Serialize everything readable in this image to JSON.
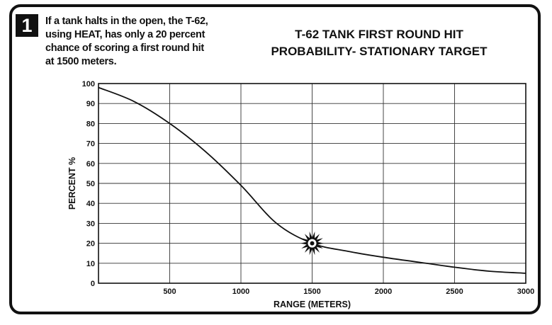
{
  "badge": {
    "number": "1"
  },
  "caption": {
    "lines": [
      "If a tank halts in the open, the T-62,",
      "using HEAT, has only a 20 percent",
      "chance of scoring a first round hit",
      "at 1500 meters."
    ]
  },
  "chart_data": {
    "type": "line",
    "title_lines": [
      "T-62 TANK FIRST ROUND HIT",
      "PROBABILITY- STATIONARY TARGET"
    ],
    "xlabel": "RANGE (METERS)",
    "ylabel": "PERCENT %",
    "xlim": [
      0,
      3000
    ],
    "ylim": [
      0,
      100
    ],
    "x_ticks": [
      500,
      1000,
      1500,
      2000,
      2500,
      3000
    ],
    "y_ticks": [
      0,
      10,
      20,
      30,
      40,
      50,
      60,
      70,
      80,
      90,
      100
    ],
    "grid": true,
    "series": [
      {
        "x": [
          0,
          250,
          500,
          750,
          1000,
          1250,
          1500,
          1750,
          2000,
          2250,
          2500,
          2750,
          3000
        ],
        "y": [
          98,
          91,
          80,
          66,
          49,
          30,
          20,
          16,
          13,
          10.5,
          8,
          6,
          5
        ]
      }
    ],
    "annotations": [
      {
        "type": "burst-marker",
        "x": 1500,
        "y": 20
      }
    ]
  }
}
